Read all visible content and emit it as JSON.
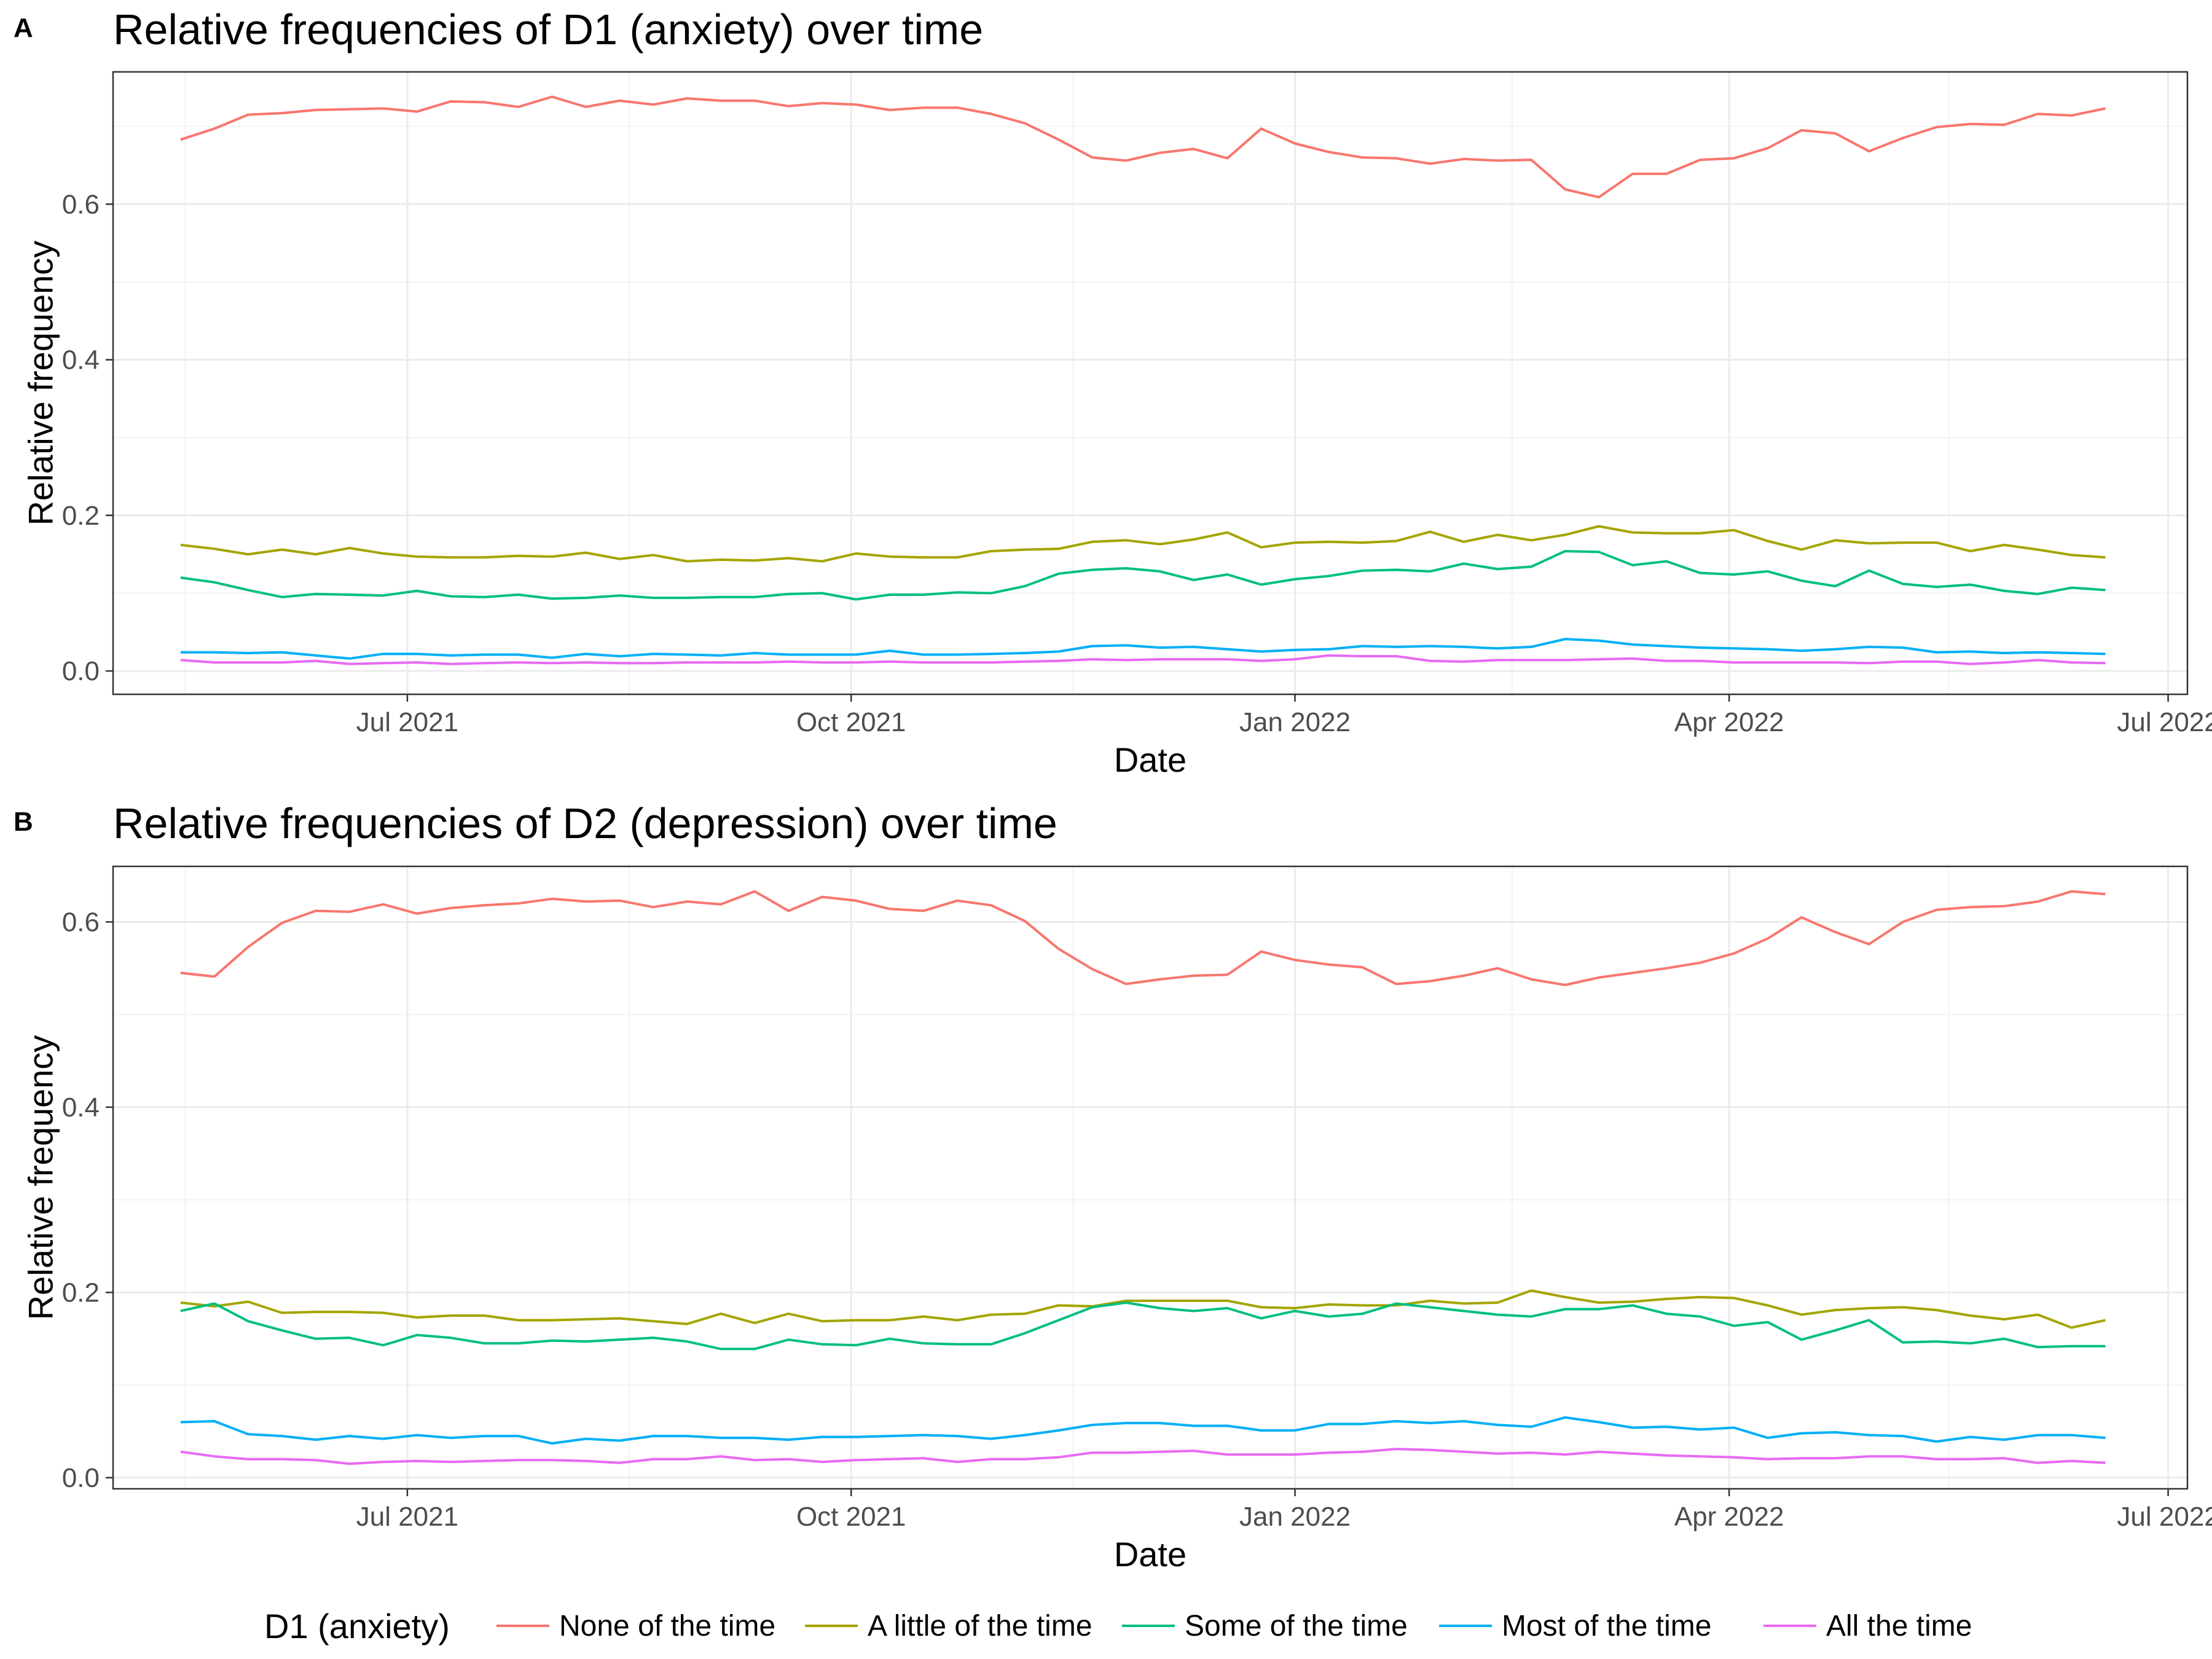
{
  "chart_data": [
    {
      "panel_label": "A",
      "type": "line",
      "title": "Relative frequencies of D1 (anxiety) over time",
      "xlabel": "Date",
      "ylabel": "Relative frequency",
      "x_start": "2021-05-15",
      "x_step_days": 7,
      "xlim": [
        "2021-05-01",
        "2022-07-05"
      ],
      "ylim": [
        -0.03,
        0.77
      ],
      "x_ticks": [
        {
          "date": "2021-07-01",
          "label": "Jul 2021"
        },
        {
          "date": "2021-10-01",
          "label": "Oct 2021"
        },
        {
          "date": "2022-01-01",
          "label": "Jan 2022"
        },
        {
          "date": "2022-04-01",
          "label": "Apr 2022"
        },
        {
          "date": "2022-07-01",
          "label": "Jul 2022"
        }
      ],
      "y_ticks": [
        {
          "value": 0,
          "label": "0.0"
        },
        {
          "value": 0.2,
          "label": "0.2"
        },
        {
          "value": 0.4,
          "label": "0.4"
        },
        {
          "value": 0.6,
          "label": "0.6"
        }
      ],
      "grid": true,
      "series": [
        {
          "name": "None of the time",
          "color": "#F8766D",
          "values": [
            0.683,
            0.697,
            0.715,
            0.717,
            0.721,
            0.722,
            0.723,
            0.719,
            0.732,
            0.731,
            0.725,
            0.738,
            0.725,
            0.733,
            0.728,
            0.736,
            0.733,
            0.733,
            0.726,
            0.73,
            0.728,
            0.721,
            0.724,
            0.724,
            0.716,
            0.704,
            0.683,
            0.66,
            0.656,
            0.666,
            0.671,
            0.659,
            0.697,
            0.678,
            0.667,
            0.66,
            0.659,
            0.652,
            0.658,
            0.656,
            0.657,
            0.619,
            0.609,
            0.639,
            0.639,
            0.657,
            0.659,
            0.672,
            0.695,
            0.691,
            0.668,
            0.685,
            0.699,
            0.703,
            0.702,
            0.716,
            0.714,
            0.723
          ]
        },
        {
          "name": "A little of the time",
          "color": "#A3A500",
          "values": [
            0.162,
            0.157,
            0.15,
            0.156,
            0.15,
            0.158,
            0.151,
            0.147,
            0.146,
            0.146,
            0.148,
            0.147,
            0.152,
            0.144,
            0.149,
            0.141,
            0.143,
            0.142,
            0.145,
            0.141,
            0.151,
            0.147,
            0.146,
            0.146,
            0.154,
            0.156,
            0.157,
            0.166,
            0.168,
            0.163,
            0.169,
            0.178,
            0.159,
            0.165,
            0.166,
            0.165,
            0.167,
            0.179,
            0.166,
            0.175,
            0.168,
            0.175,
            0.186,
            0.178,
            0.177,
            0.177,
            0.181,
            0.167,
            0.156,
            0.168,
            0.164,
            0.165,
            0.165,
            0.154,
            0.162,
            0.156,
            0.149,
            0.146
          ]
        },
        {
          "name": "Some of the time",
          "color": "#00BF7D",
          "values": [
            0.12,
            0.114,
            0.104,
            0.095,
            0.099,
            0.098,
            0.097,
            0.103,
            0.096,
            0.095,
            0.098,
            0.093,
            0.094,
            0.097,
            0.094,
            0.094,
            0.095,
            0.095,
            0.099,
            0.1,
            0.092,
            0.098,
            0.098,
            0.101,
            0.1,
            0.109,
            0.125,
            0.13,
            0.132,
            0.128,
            0.117,
            0.124,
            0.111,
            0.118,
            0.122,
            0.129,
            0.13,
            0.128,
            0.138,
            0.131,
            0.134,
            0.154,
            0.153,
            0.136,
            0.141,
            0.126,
            0.124,
            0.128,
            0.116,
            0.109,
            0.129,
            0.112,
            0.108,
            0.111,
            0.103,
            0.099,
            0.107,
            0.104
          ]
        },
        {
          "name": "Most of the time",
          "color": "#00B0F6",
          "values": [
            0.024,
            0.024,
            0.023,
            0.024,
            0.02,
            0.016,
            0.022,
            0.022,
            0.02,
            0.021,
            0.021,
            0.017,
            0.022,
            0.019,
            0.022,
            0.021,
            0.02,
            0.023,
            0.021,
            0.021,
            0.021,
            0.026,
            0.021,
            0.021,
            0.022,
            0.023,
            0.025,
            0.032,
            0.033,
            0.03,
            0.031,
            0.028,
            0.025,
            0.027,
            0.028,
            0.032,
            0.031,
            0.032,
            0.031,
            0.029,
            0.031,
            0.041,
            0.039,
            0.034,
            0.032,
            0.03,
            0.029,
            0.028,
            0.026,
            0.028,
            0.031,
            0.03,
            0.024,
            0.025,
            0.023,
            0.024,
            0.023,
            0.022
          ]
        },
        {
          "name": "All the time",
          "color": "#E76BF3",
          "values": [
            0.014,
            0.011,
            0.011,
            0.011,
            0.013,
            0.009,
            0.01,
            0.011,
            0.009,
            0.01,
            0.011,
            0.01,
            0.011,
            0.01,
            0.01,
            0.011,
            0.011,
            0.011,
            0.012,
            0.011,
            0.011,
            0.012,
            0.011,
            0.011,
            0.011,
            0.012,
            0.013,
            0.015,
            0.014,
            0.015,
            0.015,
            0.015,
            0.013,
            0.015,
            0.02,
            0.019,
            0.019,
            0.013,
            0.012,
            0.014,
            0.014,
            0.014,
            0.015,
            0.016,
            0.013,
            0.013,
            0.011,
            0.011,
            0.011,
            0.011,
            0.01,
            0.012,
            0.012,
            0.009,
            0.011,
            0.014,
            0.011,
            0.01
          ]
        }
      ]
    },
    {
      "panel_label": "B",
      "type": "line",
      "title": "Relative frequencies of D2 (depression) over time",
      "xlabel": "Date",
      "ylabel": "Relative frequency",
      "x_start": "2021-05-15",
      "x_step_days": 7,
      "xlim": [
        "2021-05-01",
        "2022-07-05"
      ],
      "ylim": [
        -0.012,
        0.66
      ],
      "x_ticks": [
        {
          "date": "2021-07-01",
          "label": "Jul 2021"
        },
        {
          "date": "2021-10-01",
          "label": "Oct 2021"
        },
        {
          "date": "2022-01-01",
          "label": "Jan 2022"
        },
        {
          "date": "2022-04-01",
          "label": "Apr 2022"
        },
        {
          "date": "2022-07-01",
          "label": "Jul 2022"
        }
      ],
      "y_ticks": [
        {
          "value": 0,
          "label": "0.0"
        },
        {
          "value": 0.2,
          "label": "0.2"
        },
        {
          "value": 0.4,
          "label": "0.4"
        },
        {
          "value": 0.6,
          "label": "0.6"
        }
      ],
      "grid": true,
      "series": [
        {
          "name": "None of the time",
          "color": "#F8766D",
          "values": [
            0.545,
            0.541,
            0.573,
            0.599,
            0.612,
            0.611,
            0.619,
            0.609,
            0.615,
            0.618,
            0.62,
            0.625,
            0.622,
            0.623,
            0.616,
            0.622,
            0.619,
            0.633,
            0.612,
            0.627,
            0.623,
            0.614,
            0.612,
            0.623,
            0.618,
            0.601,
            0.571,
            0.549,
            0.533,
            0.538,
            0.542,
            0.543,
            0.568,
            0.559,
            0.554,
            0.551,
            0.533,
            0.536,
            0.542,
            0.55,
            0.538,
            0.532,
            0.54,
            0.545,
            0.55,
            0.556,
            0.566,
            0.582,
            0.605,
            0.589,
            0.576,
            0.6,
            0.613,
            0.616,
            0.617,
            0.622,
            0.633,
            0.63
          ]
        },
        {
          "name": "A little of the time",
          "color": "#A3A500",
          "values": [
            0.189,
            0.185,
            0.19,
            0.178,
            0.179,
            0.179,
            0.178,
            0.173,
            0.175,
            0.175,
            0.17,
            0.17,
            0.171,
            0.172,
            0.169,
            0.166,
            0.177,
            0.167,
            0.177,
            0.169,
            0.17,
            0.17,
            0.174,
            0.17,
            0.176,
            0.177,
            0.186,
            0.185,
            0.191,
            0.191,
            0.191,
            0.191,
            0.184,
            0.183,
            0.187,
            0.186,
            0.186,
            0.191,
            0.188,
            0.189,
            0.202,
            0.195,
            0.189,
            0.19,
            0.193,
            0.195,
            0.194,
            0.186,
            0.176,
            0.181,
            0.183,
            0.184,
            0.181,
            0.175,
            0.171,
            0.176,
            0.162,
            0.17
          ]
        },
        {
          "name": "Some of the time",
          "color": "#00BF7D",
          "values": [
            0.18,
            0.188,
            0.169,
            0.159,
            0.15,
            0.151,
            0.143,
            0.154,
            0.151,
            0.145,
            0.145,
            0.148,
            0.147,
            0.149,
            0.151,
            0.147,
            0.139,
            0.139,
            0.149,
            0.144,
            0.143,
            0.15,
            0.145,
            0.144,
            0.144,
            0.156,
            0.17,
            0.184,
            0.189,
            0.183,
            0.18,
            0.183,
            0.172,
            0.18,
            0.174,
            0.177,
            0.188,
            0.184,
            0.18,
            0.176,
            0.174,
            0.182,
            0.182,
            0.186,
            0.177,
            0.174,
            0.164,
            0.168,
            0.149,
            0.159,
            0.17,
            0.146,
            0.147,
            0.145,
            0.15,
            0.141,
            0.142,
            0.142
          ]
        },
        {
          "name": "Most of the time",
          "color": "#00B0F6",
          "values": [
            0.06,
            0.061,
            0.047,
            0.045,
            0.041,
            0.045,
            0.042,
            0.046,
            0.043,
            0.045,
            0.045,
            0.037,
            0.042,
            0.04,
            0.045,
            0.045,
            0.043,
            0.043,
            0.041,
            0.044,
            0.044,
            0.045,
            0.046,
            0.045,
            0.042,
            0.046,
            0.051,
            0.057,
            0.059,
            0.059,
            0.056,
            0.056,
            0.051,
            0.051,
            0.058,
            0.058,
            0.061,
            0.059,
            0.061,
            0.057,
            0.055,
            0.065,
            0.06,
            0.054,
            0.055,
            0.052,
            0.054,
            0.043,
            0.048,
            0.049,
            0.046,
            0.045,
            0.039,
            0.044,
            0.041,
            0.046,
            0.046,
            0.043
          ]
        },
        {
          "name": "All the time",
          "color": "#E76BF3",
          "values": [
            0.028,
            0.023,
            0.02,
            0.02,
            0.019,
            0.015,
            0.017,
            0.018,
            0.017,
            0.018,
            0.019,
            0.019,
            0.018,
            0.016,
            0.02,
            0.02,
            0.023,
            0.019,
            0.02,
            0.017,
            0.019,
            0.02,
            0.021,
            0.017,
            0.02,
            0.02,
            0.022,
            0.027,
            0.027,
            0.028,
            0.029,
            0.025,
            0.025,
            0.025,
            0.027,
            0.028,
            0.031,
            0.03,
            0.028,
            0.026,
            0.027,
            0.025,
            0.028,
            0.026,
            0.024,
            0.023,
            0.022,
            0.02,
            0.021,
            0.021,
            0.023,
            0.023,
            0.02,
            0.02,
            0.021,
            0.016,
            0.018,
            0.016
          ]
        }
      ]
    }
  ],
  "legend": {
    "title": "D1 (anxiety)",
    "position": "bottom",
    "items": [
      {
        "label": "None of the time",
        "color": "#F8766D"
      },
      {
        "label": "A little of the time",
        "color": "#A3A500"
      },
      {
        "label": "Some of the time",
        "color": "#00BF7D"
      },
      {
        "label": "Most of the time",
        "color": "#00B0F6"
      },
      {
        "label": "All the time",
        "color": "#E76BF3"
      }
    ]
  }
}
